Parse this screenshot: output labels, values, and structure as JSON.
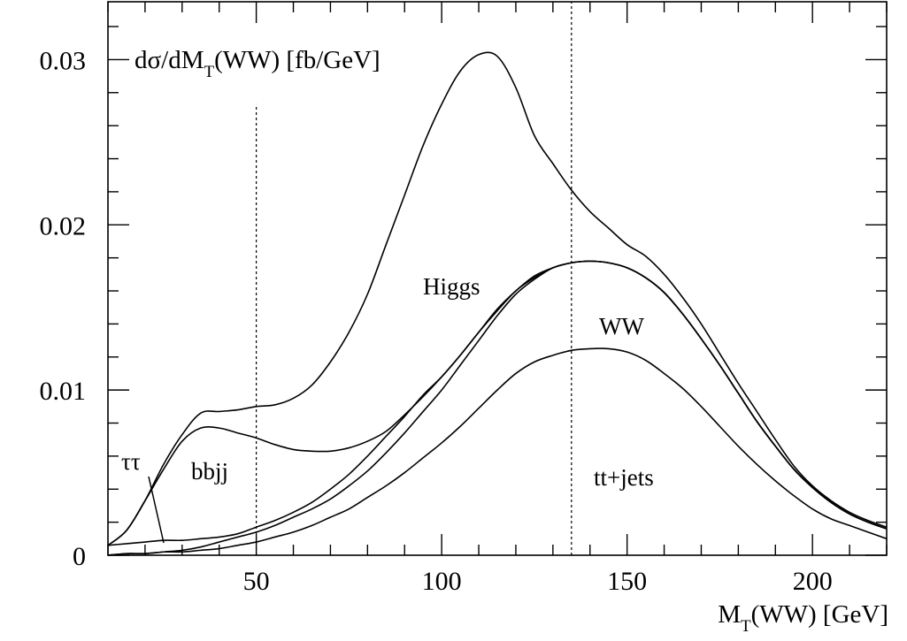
{
  "chart_data": {
    "type": "line",
    "title_main": "dσ/dM",
    "title_sub": "T",
    "title_rest": "(WW) [fb/GeV]",
    "xlabel_main": "M",
    "xlabel_sub": "T",
    "xlabel_rest": "(WW) [GeV]",
    "xlim": [
      10,
      220
    ],
    "ylim": [
      0,
      0.0335
    ],
    "x_ticks": [
      50,
      100,
      150,
      200
    ],
    "x_tick_labels": [
      "50",
      "100",
      "150",
      "200"
    ],
    "y_ticks": [
      0,
      0.01,
      0.02,
      0.03
    ],
    "y_tick_labels": [
      "0",
      "0.01",
      "0.02",
      "0.03"
    ],
    "vertical_cuts": [
      {
        "x": 50,
        "ymax": 0.0273
      },
      {
        "x": 135,
        "ymax": 0.0335
      }
    ],
    "annotations": {
      "higgs": "Higgs",
      "ww": "WW",
      "ttjets": "tt+jets",
      "bbjj": "bbjj",
      "tautau": "ττ"
    },
    "series": [
      {
        "x": [
          10,
          15,
          20,
          25,
          30,
          35,
          40,
          45,
          50,
          55,
          60,
          65,
          70,
          75,
          80,
          85,
          90,
          95,
          100,
          105,
          110,
          115,
          120,
          125,
          130,
          135,
          140,
          145,
          150,
          155,
          160,
          165,
          170,
          175,
          180,
          185,
          190,
          195,
          200,
          205,
          210,
          215,
          220
        ],
        "values": [
          0.0006,
          0.0015,
          0.0033,
          0.0055,
          0.0073,
          0.0086,
          0.0087,
          0.0088,
          0.009,
          0.0091,
          0.0095,
          0.0103,
          0.0117,
          0.0135,
          0.0158,
          0.0188,
          0.0218,
          0.0248,
          0.0273,
          0.0293,
          0.0303,
          0.0302,
          0.0283,
          0.0254,
          0.0237,
          0.0221,
          0.0208,
          0.0198,
          0.0188,
          0.0181,
          0.017,
          0.0156,
          0.014,
          0.0122,
          0.0104,
          0.0087,
          0.007,
          0.0054,
          0.0042,
          0.0033,
          0.0026,
          0.0021,
          0.0017
        ]
      },
      {
        "x": [
          10,
          15,
          20,
          25,
          30,
          35,
          40,
          45,
          50,
          55,
          60,
          65,
          70,
          75,
          80,
          85,
          90,
          95,
          100,
          105,
          110,
          115,
          120,
          125,
          130,
          135,
          140,
          145,
          150,
          155,
          160,
          165,
          170,
          175,
          180,
          185,
          190,
          195,
          200,
          205,
          210,
          215,
          220
        ],
        "values": [
          0.0006,
          0.0015,
          0.0033,
          0.0052,
          0.0069,
          0.0077,
          0.0077,
          0.0074,
          0.0071,
          0.0067,
          0.0064,
          0.0063,
          0.0063,
          0.0065,
          0.0069,
          0.0075,
          0.0085,
          0.0096,
          0.0108,
          0.0121,
          0.0135,
          0.0149,
          0.016,
          0.0169,
          0.0174,
          0.0177,
          0.0178,
          0.0177,
          0.0174,
          0.0168,
          0.0159,
          0.0146,
          0.0131,
          0.0115,
          0.0098,
          0.0081,
          0.0066,
          0.0052,
          0.0041,
          0.0032,
          0.0025,
          0.002,
          0.0016
        ]
      },
      {
        "x": [
          10,
          15,
          20,
          25,
          30,
          35,
          40,
          45,
          50,
          55,
          60,
          65,
          70,
          75,
          80,
          85,
          90,
          95,
          100,
          105,
          110,
          115,
          120,
          125,
          130,
          135,
          140,
          145,
          150,
          155,
          160,
          165,
          170,
          175,
          180,
          185,
          190,
          195,
          200,
          205,
          210,
          215,
          220
        ],
        "values": [
          0.0006,
          0.0007,
          0.0008,
          0.0009,
          0.0009,
          0.001,
          0.0011,
          0.0013,
          0.0017,
          0.0021,
          0.0026,
          0.0032,
          0.004,
          0.0049,
          0.006,
          0.0072,
          0.0084,
          0.0097,
          0.0108,
          0.0121,
          0.0135,
          0.0148,
          0.016,
          0.0168,
          0.0174,
          0.0177,
          0.0178,
          0.0177,
          0.0174,
          0.0168,
          0.0159,
          0.0146,
          0.0131,
          0.0115,
          0.0098,
          0.0081,
          0.0066,
          0.0052,
          0.0041,
          0.0032,
          0.0025,
          0.002,
          0.0016
        ]
      },
      {
        "x": [
          10,
          15,
          20,
          25,
          30,
          35,
          40,
          45,
          50,
          55,
          60,
          65,
          70,
          75,
          80,
          85,
          90,
          95,
          100,
          105,
          110,
          115,
          120,
          125,
          130,
          135,
          140,
          145,
          150,
          155,
          160,
          165,
          170,
          175,
          180,
          185,
          190,
          195,
          200,
          205,
          210,
          215,
          220
        ],
        "values": [
          0,
          0.0001,
          0.0001,
          0.0002,
          0.0003,
          0.0005,
          0.0008,
          0.0011,
          0.0014,
          0.0018,
          0.0023,
          0.0028,
          0.0034,
          0.0042,
          0.0051,
          0.0062,
          0.0074,
          0.0087,
          0.01,
          0.0115,
          0.013,
          0.0145,
          0.0158,
          0.0167,
          0.0174,
          0.0177,
          0.0178,
          0.0177,
          0.0174,
          0.0168,
          0.0159,
          0.0146,
          0.0131,
          0.0115,
          0.0098,
          0.0081,
          0.0066,
          0.0052,
          0.0041,
          0.0032,
          0.0025,
          0.002,
          0.0016
        ]
      },
      {
        "x": [
          10,
          15,
          20,
          25,
          30,
          35,
          40,
          45,
          50,
          55,
          60,
          65,
          70,
          75,
          80,
          85,
          90,
          95,
          100,
          105,
          110,
          115,
          120,
          125,
          130,
          135,
          140,
          145,
          150,
          155,
          160,
          165,
          170,
          175,
          180,
          185,
          190,
          195,
          200,
          205,
          210,
          215,
          220
        ],
        "values": [
          0,
          0.0001,
          0.0001,
          0.0002,
          0.0002,
          0.0003,
          0.0004,
          0.0006,
          0.0008,
          0.0011,
          0.0014,
          0.0018,
          0.0023,
          0.0028,
          0.0035,
          0.0042,
          0.005,
          0.0059,
          0.0068,
          0.0078,
          0.0089,
          0.01,
          0.011,
          0.0117,
          0.0121,
          0.0124,
          0.0125,
          0.0125,
          0.0123,
          0.0118,
          0.011,
          0.0101,
          0.009,
          0.0078,
          0.0066,
          0.0055,
          0.0045,
          0.0036,
          0.0028,
          0.0022,
          0.0018,
          0.0014,
          0.001
        ]
      }
    ]
  }
}
